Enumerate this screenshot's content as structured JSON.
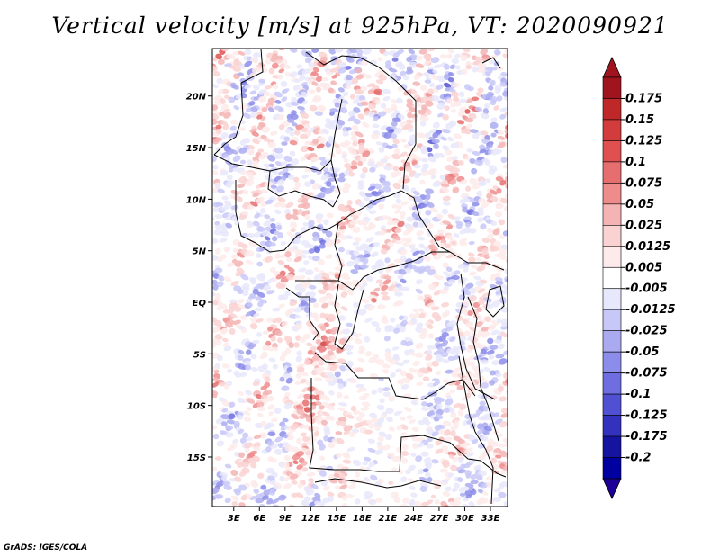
{
  "title": "Vertical velocity [m/s] at 925hPa, VT: 2020090921",
  "credit": "GrADS: IGES/COLA",
  "chart_data": {
    "type": "heatmap",
    "variable": "Vertical velocity",
    "units": "m/s",
    "level": "925hPa",
    "valid_time": "2020090921",
    "x_axis": {
      "ticks": [
        3,
        6,
        9,
        12,
        15,
        18,
        21,
        24,
        27,
        30,
        33
      ],
      "tick_labels": [
        "3E",
        "6E",
        "9E",
        "12E",
        "15E",
        "18E",
        "21E",
        "24E",
        "27E",
        "30E",
        "33E"
      ],
      "range": [
        0.5,
        35.0
      ]
    },
    "y_axis": {
      "ticks": [
        20,
        15,
        10,
        5,
        0,
        -5,
        -10,
        -15
      ],
      "tick_labels": [
        "20N",
        "15N",
        "10N",
        "5N",
        "EQ",
        "5S",
        "10S",
        "15S"
      ],
      "range": [
        -19.8,
        24.6
      ]
    },
    "colorbar": {
      "levels": [
        "0.175",
        "0.15",
        "0.125",
        "0.1",
        "0.075",
        "0.05",
        "0.025",
        "0.0125",
        "0.005",
        "-0.005",
        "-0.0125",
        "-0.025",
        "-0.05",
        "-0.075",
        "-0.1",
        "-0.125",
        "-0.175",
        "-0.2"
      ],
      "colors": [
        "#a0141e",
        "#be2828",
        "#d23c3c",
        "#e05050",
        "#e66e6e",
        "#ee8c8c",
        "#f5b4b4",
        "#fad2d2",
        "#fdeaea",
        "#ffffff",
        "#e8e8fc",
        "#c8c8f8",
        "#aaaaf0",
        "#8c8cea",
        "#6e6ee0",
        "#5050d2",
        "#3232be",
        "#1414a0",
        "#0000a0"
      ],
      "top_arrow_color": "#a0141e",
      "bottom_arrow_color": "#1e0096"
    },
    "grid": false
  }
}
